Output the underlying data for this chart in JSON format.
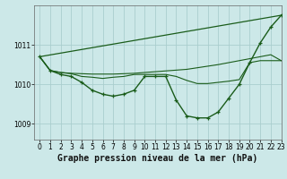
{
  "title": "Graphe pression niveau de la mer (hPa)",
  "background_color": "#cce8e8",
  "grid_color": "#aacece",
  "line_color": "#1a5c1a",
  "xlim": [
    -0.5,
    23
  ],
  "ylim": [
    1008.6,
    1012.0
  ],
  "yticks": [
    1009,
    1010,
    1011
  ],
  "xticks": [
    0,
    1,
    2,
    3,
    4,
    5,
    6,
    7,
    8,
    9,
    10,
    11,
    12,
    13,
    14,
    15,
    16,
    17,
    18,
    19,
    20,
    21,
    22,
    23
  ],
  "xlabel_fontsize": 7.0,
  "tick_fontsize": 5.5,
  "series": [
    {
      "name": "main_with_markers",
      "x": [
        0,
        1,
        2,
        3,
        4,
        5,
        6,
        7,
        8,
        9,
        10,
        11,
        12,
        13,
        14,
        15,
        16,
        17,
        18,
        19,
        20,
        21,
        22,
        23
      ],
      "y": [
        1010.7,
        1010.35,
        1010.25,
        1010.2,
        1010.05,
        1009.85,
        1009.75,
        1009.7,
        1009.75,
        1009.85,
        1010.2,
        1010.2,
        1010.2,
        1009.6,
        1009.2,
        1009.15,
        1009.15,
        1009.3,
        1009.65,
        1010.0,
        1010.55,
        1011.05,
        1011.45,
        1011.75
      ],
      "has_markers": true,
      "linewidth": 1.0,
      "markersize": 3.5
    },
    {
      "name": "upper_diagonal",
      "x": [
        0,
        23
      ],
      "y": [
        1010.7,
        1011.75
      ],
      "has_markers": false,
      "linewidth": 0.9
    },
    {
      "name": "flat_upper",
      "x": [
        0,
        1,
        2,
        3,
        4,
        5,
        6,
        7,
        8,
        9,
        10,
        11,
        12,
        13,
        14,
        15,
        16,
        17,
        18,
        19,
        20,
        21,
        22,
        23
      ],
      "y": [
        1010.7,
        1010.35,
        1010.3,
        1010.28,
        1010.27,
        1010.26,
        1010.26,
        1010.26,
        1010.27,
        1010.28,
        1010.3,
        1010.32,
        1010.34,
        1010.36,
        1010.38,
        1010.42,
        1010.46,
        1010.5,
        1010.55,
        1010.6,
        1010.65,
        1010.7,
        1010.75,
        1010.6
      ],
      "has_markers": false,
      "linewidth": 0.8
    },
    {
      "name": "flat_lower",
      "x": [
        0,
        1,
        2,
        3,
        4,
        5,
        6,
        7,
        8,
        9,
        10,
        11,
        12,
        13,
        14,
        15,
        16,
        17,
        18,
        19,
        20,
        21,
        22,
        23
      ],
      "y": [
        1010.7,
        1010.35,
        1010.3,
        1010.27,
        1010.2,
        1010.18,
        1010.15,
        1010.18,
        1010.2,
        1010.25,
        1010.25,
        1010.25,
        1010.25,
        1010.2,
        1010.1,
        1010.02,
        1010.02,
        1010.05,
        1010.08,
        1010.12,
        1010.55,
        1010.6,
        1010.6,
        1010.6
      ],
      "has_markers": false,
      "linewidth": 0.8
    }
  ]
}
